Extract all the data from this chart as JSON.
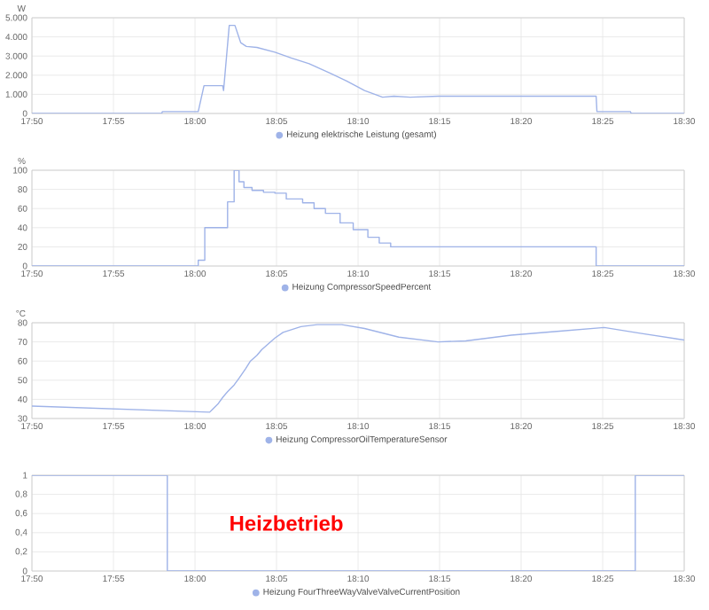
{
  "chart_data": [
    {
      "type": "line",
      "ylabel": "W",
      "xlim": [
        17.8333,
        18.5
      ],
      "ylim": [
        0,
        5000
      ],
      "xticks": [
        {
          "value": 17.8333,
          "label": "17:50"
        },
        {
          "value": 17.9167,
          "label": "17:55"
        },
        {
          "value": 18.0,
          "label": "18:00"
        },
        {
          "value": 18.0833,
          "label": "18:05"
        },
        {
          "value": 18.1667,
          "label": "18:10"
        },
        {
          "value": 18.25,
          "label": "18:15"
        },
        {
          "value": 18.3333,
          "label": "18:20"
        },
        {
          "value": 18.4167,
          "label": "18:25"
        },
        {
          "value": 18.5,
          "label": "18:30"
        }
      ],
      "yticks": [
        0,
        {
          "value": 1000,
          "label": "1.000"
        },
        {
          "value": 2000,
          "label": "2.000"
        },
        {
          "value": 3000,
          "label": "3.000"
        },
        {
          "value": 4000,
          "label": "4.000"
        },
        {
          "value": 5000,
          "label": "5.000"
        }
      ],
      "grid": true,
      "legend": "bottom",
      "series": [
        {
          "name": "Heizung elektrische Leistung (gesamt)",
          "color": "#9fb3e8",
          "x": [
            17.8333,
            17.966,
            17.9667,
            18.0033,
            18.0092,
            18.0283,
            18.0292,
            18.035,
            18.0408,
            18.0467,
            18.0525,
            18.0633,
            18.0817,
            18.0983,
            18.1167,
            18.1383,
            18.155,
            18.1733,
            18.1917,
            18.2033,
            18.22,
            18.2483,
            18.41,
            18.4108,
            18.445,
            18.4458,
            18.5
          ],
          "values": [
            0,
            0,
            100,
            100,
            1450,
            1450,
            1200,
            4600,
            4600,
            3700,
            3500,
            3450,
            3200,
            2900,
            2600,
            2100,
            1700,
            1200,
            850,
            900,
            850,
            900,
            900,
            100,
            100,
            0,
            0
          ]
        }
      ]
    },
    {
      "type": "step",
      "ylabel": "%",
      "xlim": [
        17.8333,
        18.5
      ],
      "ylim": [
        0,
        100
      ],
      "xticks": [
        {
          "value": 17.8333,
          "label": "17:50"
        },
        {
          "value": 17.9167,
          "label": "17:55"
        },
        {
          "value": 18.0,
          "label": "18:00"
        },
        {
          "value": 18.0833,
          "label": "18:05"
        },
        {
          "value": 18.1667,
          "label": "18:10"
        },
        {
          "value": 18.25,
          "label": "18:15"
        },
        {
          "value": 18.3333,
          "label": "18:20"
        },
        {
          "value": 18.4167,
          "label": "18:25"
        },
        {
          "value": 18.5,
          "label": "18:30"
        }
      ],
      "yticks": [
        0,
        20,
        40,
        60,
        80,
        100
      ],
      "grid": true,
      "legend": "bottom",
      "series": [
        {
          "name": "Heizung CompressorSpeedPercent",
          "color": "#9fb3e8",
          "x": [
            17.8333,
            18.0033,
            18.01,
            18.0333,
            18.04,
            18.045,
            18.05,
            18.0583,
            18.07,
            18.0817,
            18.0933,
            18.11,
            18.1217,
            18.1333,
            18.1483,
            18.1617,
            18.1767,
            18.1883,
            18.2,
            18.41,
            18.5
          ],
          "values": [
            0,
            6,
            40,
            67,
            100,
            88,
            82,
            79,
            77,
            76,
            70,
            66,
            60,
            55,
            45,
            38,
            30,
            24,
            20,
            0,
            0
          ]
        }
      ]
    },
    {
      "type": "line",
      "ylabel": "°C",
      "xlim": [
        17.8333,
        18.5
      ],
      "ylim": [
        30,
        80
      ],
      "xticks": [
        {
          "value": 17.8333,
          "label": "17:50"
        },
        {
          "value": 17.9167,
          "label": "17:55"
        },
        {
          "value": 18.0,
          "label": "18:00"
        },
        {
          "value": 18.0833,
          "label": "18:05"
        },
        {
          "value": 18.1667,
          "label": "18:10"
        },
        {
          "value": 18.25,
          "label": "18:15"
        },
        {
          "value": 18.3333,
          "label": "18:20"
        },
        {
          "value": 18.4167,
          "label": "18:25"
        },
        {
          "value": 18.5,
          "label": "18:30"
        }
      ],
      "yticks": [
        30,
        40,
        50,
        60,
        70,
        80
      ],
      "grid": true,
      "legend": "bottom",
      "series": [
        {
          "name": "Heizung CompressorOilTemperatureSensor",
          "color": "#9fb3e8",
          "x": [
            17.8333,
            18.015,
            18.0183,
            18.0233,
            18.0283,
            18.0333,
            18.04,
            18.045,
            18.0517,
            18.0567,
            18.0633,
            18.0683,
            18.075,
            18.0817,
            18.09,
            18.1083,
            18.125,
            18.15,
            18.1733,
            18.2083,
            18.2483,
            18.2767,
            18.3233,
            18.37,
            18.4183,
            18.455,
            18.5
          ],
          "values": [
            36.5,
            33.3,
            35,
            37.5,
            41,
            44,
            47.5,
            51,
            56,
            60,
            63,
            66,
            69,
            72,
            75,
            78,
            79,
            79,
            77,
            72.5,
            70,
            70.5,
            73.5,
            75.5,
            77.5,
            74.5,
            71
          ]
        }
      ]
    },
    {
      "type": "step",
      "xlim": [
        17.8333,
        18.5
      ],
      "ylim": [
        0,
        1
      ],
      "xticks": [
        {
          "value": 17.8333,
          "label": "17:50"
        },
        {
          "value": 17.9167,
          "label": "17:55"
        },
        {
          "value": 18.0,
          "label": "18:00"
        },
        {
          "value": 18.0833,
          "label": "18:05"
        },
        {
          "value": 18.1667,
          "label": "18:10"
        },
        {
          "value": 18.25,
          "label": "18:15"
        },
        {
          "value": 18.3333,
          "label": "18:20"
        },
        {
          "value": 18.4167,
          "label": "18:25"
        },
        {
          "value": 18.5,
          "label": "18:30"
        }
      ],
      "yticks": [
        0,
        {
          "value": 0.2,
          "label": "0,2"
        },
        {
          "value": 0.4,
          "label": "0,4"
        },
        {
          "value": 0.6,
          "label": "0,6"
        },
        {
          "value": 0.8,
          "label": "0,8"
        },
        1
      ],
      "grid": true,
      "legend": "bottom",
      "annotations": [
        "Heizbetrieb"
      ],
      "series": [
        {
          "name": "Heizung FourThreeWayValveValveCurrentPosition",
          "color": "#9fb3e8",
          "x": [
            17.8333,
            17.9717,
            18.45,
            18.5
          ],
          "values": [
            1,
            0,
            1,
            1
          ]
        }
      ]
    }
  ]
}
